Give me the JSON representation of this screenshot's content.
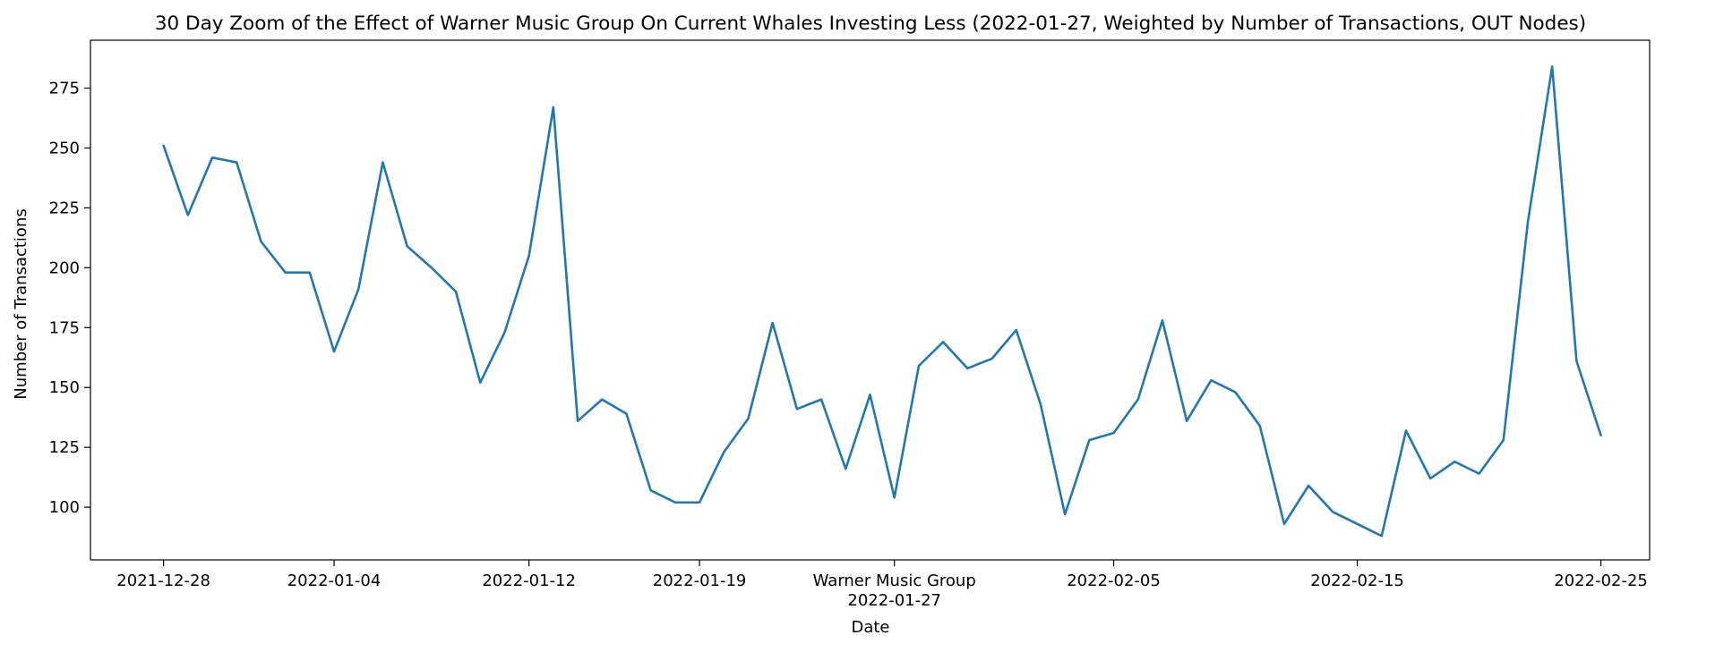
{
  "chart_data": {
    "type": "line",
    "title": "30 Day Zoom of the Effect of Warner Music Group On Current Whales Investing Less (2022-01-27, Weighted by Number of Transactions, OUT Nodes)",
    "xlabel": "Date",
    "ylabel": "Number of Transactions",
    "xlim": [
      "2021-12-25",
      "2022-02-27"
    ],
    "ylim": [
      78,
      295
    ],
    "x_ticks": [
      "2021-12-28",
      "2022-01-04",
      "2022-01-12",
      "2022-01-19",
      "2022-01-27",
      "2022-02-05",
      "2022-02-15",
      "2022-02-25"
    ],
    "x_tick_labels": [
      "2021-12-28",
      "2022-01-04",
      "2022-01-12",
      "2022-01-19",
      "2022-01-27",
      "2022-02-05",
      "2022-02-15",
      "2022-02-25"
    ],
    "event_label": "Warner Music Group",
    "event_date": "2022-01-27",
    "y_ticks": [
      100,
      125,
      150,
      175,
      200,
      225,
      250,
      275
    ],
    "grid": false,
    "line_color": "#1f77b4",
    "series": [
      {
        "x": [
          "2021-12-28",
          "2021-12-29",
          "2021-12-30",
          "2021-12-31",
          "2022-01-01",
          "2022-01-02",
          "2022-01-03",
          "2022-01-04",
          "2022-01-05",
          "2022-01-06",
          "2022-01-07",
          "2022-01-08",
          "2022-01-09",
          "2022-01-10",
          "2022-01-11",
          "2022-01-12",
          "2022-01-13",
          "2022-01-14",
          "2022-01-15",
          "2022-01-16",
          "2022-01-17",
          "2022-01-18",
          "2022-01-19",
          "2022-01-20",
          "2022-01-21",
          "2022-01-22",
          "2022-01-23",
          "2022-01-24",
          "2022-01-25",
          "2022-01-26",
          "2022-01-27",
          "2022-01-28",
          "2022-01-29",
          "2022-01-30",
          "2022-01-31",
          "2022-02-01",
          "2022-02-02",
          "2022-02-03",
          "2022-02-04",
          "2022-02-05",
          "2022-02-06",
          "2022-02-07",
          "2022-02-08",
          "2022-02-09",
          "2022-02-10",
          "2022-02-11",
          "2022-02-12",
          "2022-02-13",
          "2022-02-14",
          "2022-02-15",
          "2022-02-16",
          "2022-02-17",
          "2022-02-18",
          "2022-02-19",
          "2022-02-20",
          "2022-02-21",
          "2022-02-22",
          "2022-02-23",
          "2022-02-24",
          "2022-02-25"
        ],
        "values": [
          251,
          222,
          246,
          244,
          211,
          198,
          198,
          165,
          191,
          244,
          209,
          200,
          190,
          152,
          173,
          205,
          267,
          136,
          145,
          139,
          107,
          102,
          102,
          123,
          137,
          177,
          141,
          145,
          116,
          147,
          104,
          159,
          169,
          158,
          162,
          174,
          143,
          97,
          128,
          131,
          145,
          178,
          136,
          153,
          148,
          134,
          93,
          109,
          98,
          93,
          88,
          132,
          112,
          119,
          114,
          128,
          219,
          284,
          161,
          130
        ]
      }
    ]
  }
}
